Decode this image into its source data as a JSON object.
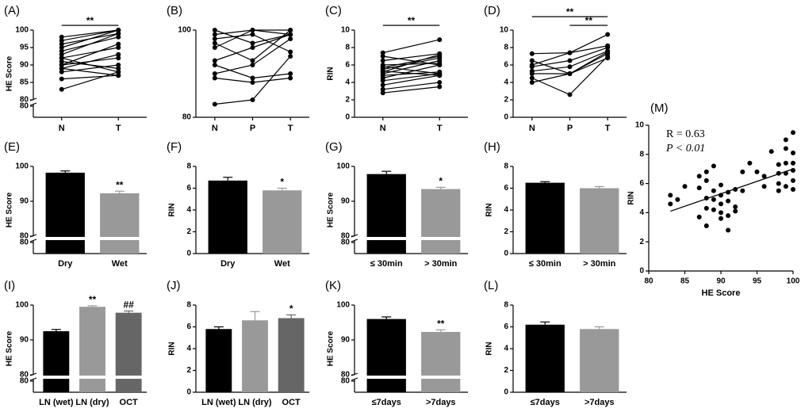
{
  "chart_data": [
    {
      "type": "line",
      "label": "(A)",
      "ylabel": "HE Score",
      "categories": [
        "N",
        "T"
      ],
      "color": "#000000",
      "ylim": [
        80,
        100
      ],
      "yticks": [
        80,
        85,
        90,
        95,
        100
      ],
      "break": true,
      "lower_yticks": [
        80
      ],
      "series": [
        {
          "values": [
            83,
            88
          ]
        },
        {
          "values": [
            86,
            87
          ]
        },
        {
          "values": [
            88,
            90
          ]
        },
        {
          "values": [
            89,
            93
          ]
        },
        {
          "values": [
            90,
            92
          ]
        },
        {
          "values": [
            90,
            96
          ]
        },
        {
          "values": [
            91,
            89
          ]
        },
        {
          "values": [
            92,
            95
          ]
        },
        {
          "values": [
            92,
            88
          ]
        },
        {
          "values": [
            93,
            99
          ]
        },
        {
          "values": [
            94,
            98
          ]
        },
        {
          "values": [
            95,
            100
          ]
        },
        {
          "values": [
            96,
            99
          ]
        },
        {
          "values": [
            97,
            100
          ]
        },
        {
          "values": [
            98,
            100
          ]
        },
        {
          "values": [
            89,
            87
          ]
        }
      ],
      "annotations": [
        {
          "text": "**",
          "between": [
            "N",
            "T"
          ]
        }
      ]
    },
    {
      "type": "line",
      "label": "(B)",
      "categories": [
        "N",
        "P",
        "T"
      ],
      "color": "#000000",
      "ylim": [
        80,
        100
      ],
      "yticks": [
        80,
        100
      ],
      "series": [
        {
          "values": [
            83,
            84,
            94
          ]
        },
        {
          "values": [
            89,
            88,
            89
          ]
        },
        {
          "values": [
            90,
            92,
            98
          ]
        },
        {
          "values": [
            92,
            89,
            90
          ]
        },
        {
          "values": [
            93,
            96,
            99
          ]
        },
        {
          "values": [
            96,
            100,
            99
          ]
        },
        {
          "values": [
            97,
            93,
            100
          ]
        },
        {
          "values": [
            98,
            99,
            95
          ]
        },
        {
          "values": [
            99,
            100,
            100
          ]
        },
        {
          "values": [
            100,
            97,
            99
          ]
        }
      ]
    },
    {
      "type": "line",
      "label": "(C)",
      "ylabel": "RIN",
      "categories": [
        "N",
        "T"
      ],
      "color": "#000000",
      "ylim": [
        0,
        10
      ],
      "yticks": [
        0,
        2,
        4,
        6,
        8,
        10
      ],
      "series": [
        {
          "values": [
            2.8,
            3.5
          ]
        },
        {
          "values": [
            3.2,
            4
          ]
        },
        {
          "values": [
            3.7,
            4.8
          ]
        },
        {
          "values": [
            4.2,
            5
          ]
        },
        {
          "values": [
            4.5,
            6
          ]
        },
        {
          "values": [
            4.8,
            5.2
          ]
        },
        {
          "values": [
            5,
            6.5
          ]
        },
        {
          "values": [
            5.2,
            7.2
          ]
        },
        {
          "values": [
            5.3,
            4.8
          ]
        },
        {
          "values": [
            5.5,
            6.8
          ]
        },
        {
          "values": [
            5.7,
            7
          ]
        },
        {
          "values": [
            5.8,
            5
          ]
        },
        {
          "values": [
            6,
            6.2
          ]
        },
        {
          "values": [
            6.5,
            7.3
          ]
        },
        {
          "values": [
            7,
            6
          ]
        },
        {
          "values": [
            7.4,
            8.9
          ]
        }
      ],
      "annotations": [
        {
          "text": "**",
          "between": [
            "N",
            "T"
          ]
        }
      ]
    },
    {
      "type": "line",
      "label": "(D)",
      "categories": [
        "N",
        "P",
        "T"
      ],
      "color": "#000000",
      "ylim": [
        0,
        10
      ],
      "yticks": [
        0,
        2,
        4,
        6,
        8,
        10
      ],
      "series": [
        {
          "values": [
            4,
            5,
            6.8
          ]
        },
        {
          "values": [
            4.5,
            2.6,
            7
          ]
        },
        {
          "values": [
            5,
            5,
            7.3
          ]
        },
        {
          "values": [
            5.3,
            5.8,
            7.6
          ]
        },
        {
          "values": [
            5.8,
            6.5,
            8
          ]
        },
        {
          "values": [
            6,
            7.4,
            8.2
          ]
        },
        {
          "values": [
            6.5,
            5,
            7.5
          ]
        },
        {
          "values": [
            7.3,
            7.4,
            9.5
          ]
        }
      ],
      "annotations": [
        {
          "text": "**",
          "between": [
            "N",
            "T"
          ]
        },
        {
          "text": "**",
          "between": [
            "P",
            "T"
          ]
        }
      ]
    },
    {
      "type": "bar",
      "label": "(E)",
      "ylabel": "HE Score",
      "categories": [
        "Dry",
        "Wet"
      ],
      "values": [
        98.2,
        92.3
      ],
      "errors": [
        0.5,
        0.6
      ],
      "colors": [
        "#000000",
        "#999999"
      ],
      "ylim": [
        80,
        100
      ],
      "yticks": [
        80,
        90,
        100
      ],
      "break": true,
      "lower_yticks": [
        80
      ],
      "annotations": [
        {
          "text": "**",
          "category": "Wet"
        }
      ]
    },
    {
      "type": "bar",
      "label": "(F)",
      "ylabel": "RIN",
      "categories": [
        "Dry",
        "Wet"
      ],
      "values": [
        6.7,
        5.8
      ],
      "errors": [
        0.3,
        0.2
      ],
      "colors": [
        "#000000",
        "#999999"
      ],
      "ylim": [
        0,
        8
      ],
      "yticks": [
        0,
        2,
        4,
        6,
        8
      ],
      "annotations": [
        {
          "text": "*",
          "category": "Wet"
        }
      ]
    },
    {
      "type": "bar",
      "label": "(G)",
      "ylabel": "HE Score",
      "categories": [
        "≤ 30min",
        "> 30min"
      ],
      "values": [
        97.8,
        93.5
      ],
      "errors": [
        0.8,
        0.5
      ],
      "colors": [
        "#000000",
        "#999999"
      ],
      "ylim": [
        80,
        100
      ],
      "yticks": [
        80,
        90,
        100
      ],
      "break": true,
      "lower_yticks": [
        80
      ],
      "annotations": [
        {
          "text": "*",
          "category": "> 30min"
        }
      ]
    },
    {
      "type": "bar",
      "label": "(H)",
      "ylabel": "RIN",
      "categories": [
        "≤ 30min",
        "> 30min"
      ],
      "values": [
        6.5,
        6.0
      ],
      "errors": [
        0.1,
        0.15
      ],
      "colors": [
        "#000000",
        "#999999"
      ],
      "ylim": [
        0,
        8
      ],
      "yticks": [
        0,
        2,
        4,
        6,
        8
      ]
    },
    {
      "type": "bar",
      "label": "(I)",
      "ylabel": "HE Score",
      "categories": [
        "LN (wet)",
        "LN (dry)",
        "OCT"
      ],
      "values": [
        92.5,
        99.5,
        97.8
      ],
      "errors": [
        0.5,
        0.3,
        0.5
      ],
      "colors": [
        "#000000",
        "#999999",
        "#666666"
      ],
      "ylim": [
        80,
        100
      ],
      "yticks": [
        80,
        90,
        100
      ],
      "break": true,
      "lower_yticks": [
        80
      ],
      "annotations": [
        {
          "text": "**",
          "category": "LN (dry)"
        },
        {
          "text": "##",
          "category": "OCT"
        }
      ]
    },
    {
      "type": "bar",
      "label": "(J)",
      "ylabel": "RIN",
      "categories": [
        "LN (wet)",
        "LN (dry)",
        "OCT"
      ],
      "values": [
        5.8,
        6.6,
        6.8
      ],
      "errors": [
        0.2,
        0.8,
        0.3
      ],
      "colors": [
        "#000000",
        "#999999",
        "#666666"
      ],
      "ylim": [
        0,
        8
      ],
      "yticks": [
        0,
        2,
        4,
        6,
        8
      ],
      "annotations": [
        {
          "text": "*",
          "category": "OCT"
        }
      ]
    },
    {
      "type": "bar",
      "label": "(K)",
      "ylabel": "HE Score",
      "categories": [
        "≤7days",
        ">7days"
      ],
      "values": [
        96,
        92.3
      ],
      "errors": [
        0.6,
        0.6
      ],
      "colors": [
        "#000000",
        "#999999"
      ],
      "ylim": [
        80,
        100
      ],
      "yticks": [
        80,
        90,
        100
      ],
      "break": true,
      "lower_yticks": [
        80
      ],
      "annotations": [
        {
          "text": "**",
          "category": ">7days"
        }
      ]
    },
    {
      "type": "bar",
      "label": "(L)",
      "ylabel": "RIN",
      "categories": [
        "≤7days",
        ">7days"
      ],
      "values": [
        6.2,
        5.8
      ],
      "errors": [
        0.25,
        0.2
      ],
      "colors": [
        "#000000",
        "#999999"
      ],
      "ylim": [
        0,
        8
      ],
      "yticks": [
        0,
        2,
        4,
        6,
        8
      ]
    },
    {
      "type": "scatter",
      "label": "(M)",
      "xlabel": "HE Score",
      "ylabel": "RIN",
      "color": "#000000",
      "xlim": [
        80,
        100
      ],
      "xticks": [
        80,
        85,
        90,
        95,
        100
      ],
      "ylim": [
        0,
        10
      ],
      "yticks": [
        0,
        2,
        4,
        6,
        8,
        10
      ],
      "x": [
        83,
        83,
        84,
        85,
        87,
        87,
        88,
        88,
        88,
        88,
        89,
        89,
        89,
        89,
        90,
        90,
        90,
        90,
        91,
        91,
        91,
        91,
        92,
        92,
        92,
        93,
        93,
        94,
        95,
        96,
        96,
        97,
        98,
        98,
        98,
        98,
        99,
        99,
        99,
        99,
        99,
        100,
        100,
        100,
        100,
        100,
        100,
        88,
        87,
        90
      ],
      "y": [
        5.2,
        4.6,
        4.9,
        5.8,
        6.5,
        3.7,
        5,
        4.3,
        3.1,
        6.2,
        7.2,
        4.9,
        4.2,
        5.5,
        5.2,
        4.6,
        3.6,
        5.9,
        5.4,
        2.8,
        4.8,
        3.8,
        5.6,
        4.4,
        4.1,
        6.8,
        5.5,
        7.4,
        6.8,
        6.5,
        5.8,
        8.2,
        7.3,
        6.7,
        6,
        5.5,
        9,
        8.4,
        7.4,
        6.7,
        5.8,
        9.5,
        8.1,
        7.4,
        6.9,
        6.2,
        5.6,
        6.8,
        5.7,
        4.0
      ],
      "fit": {
        "x": [
          83,
          100
        ],
        "y": [
          4.1,
          7.0
        ]
      },
      "texts": [
        "R = 0.63",
        "P < 0.01"
      ]
    }
  ]
}
